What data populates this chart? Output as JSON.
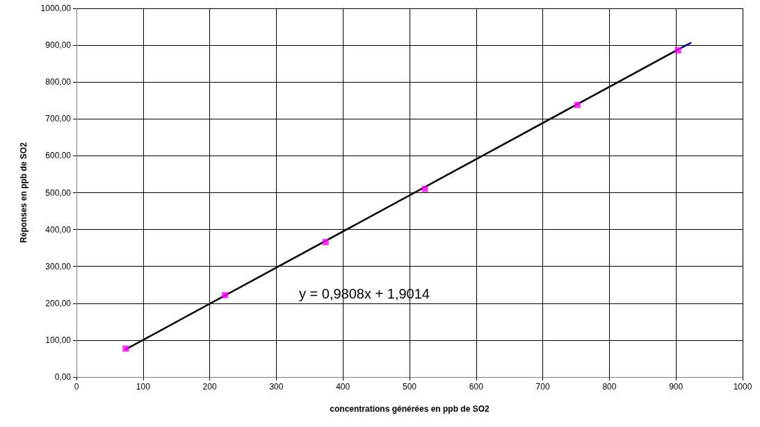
{
  "chart_data": {
    "type": "scatter",
    "xlabel": "concentrations générées en ppb de SO2",
    "ylabel": "Réponses en ppb de SO2",
    "series": [
      {
        "color": "#ff00ff",
        "x": [
          74,
          223,
          374,
          523,
          752,
          903
        ],
        "values": [
          77,
          222,
          366,
          510,
          738,
          886
        ],
        "marker": "square"
      },
      {
        "type": "line",
        "color": "#000000",
        "x": [
          74,
          903
        ],
        "values": [
          75,
          888
        ],
        "line_style": "solid",
        "marker": "none"
      },
      {
        "type": "line",
        "color": "#000080",
        "x": [
          903,
          922
        ],
        "values": [
          888,
          906
        ],
        "line_style": "solid",
        "marker": "none"
      }
    ],
    "xlim": [
      0,
      1000
    ],
    "xticks": [
      0,
      100,
      200,
      300,
      400,
      500,
      600,
      700,
      800,
      900,
      1000
    ],
    "ylim": [
      0,
      1000
    ],
    "yticks": [
      {
        "value": 0,
        "label": "0,00"
      },
      {
        "value": 100,
        "label": "100,00"
      },
      {
        "value": 200,
        "label": "200,00"
      },
      {
        "value": 300,
        "label": "300,00"
      },
      {
        "value": 400,
        "label": "400,00"
      },
      {
        "value": 500,
        "label": "500,00"
      },
      {
        "value": 600,
        "label": "600,00"
      },
      {
        "value": 700,
        "label": "700,00"
      },
      {
        "value": 800,
        "label": "800,00"
      },
      {
        "value": 900,
        "label": "900,00"
      },
      {
        "value": 1000,
        "label": "1000,00"
      }
    ],
    "grid": true,
    "annotations": [
      "y = 0,9808x + 1,9014"
    ]
  }
}
